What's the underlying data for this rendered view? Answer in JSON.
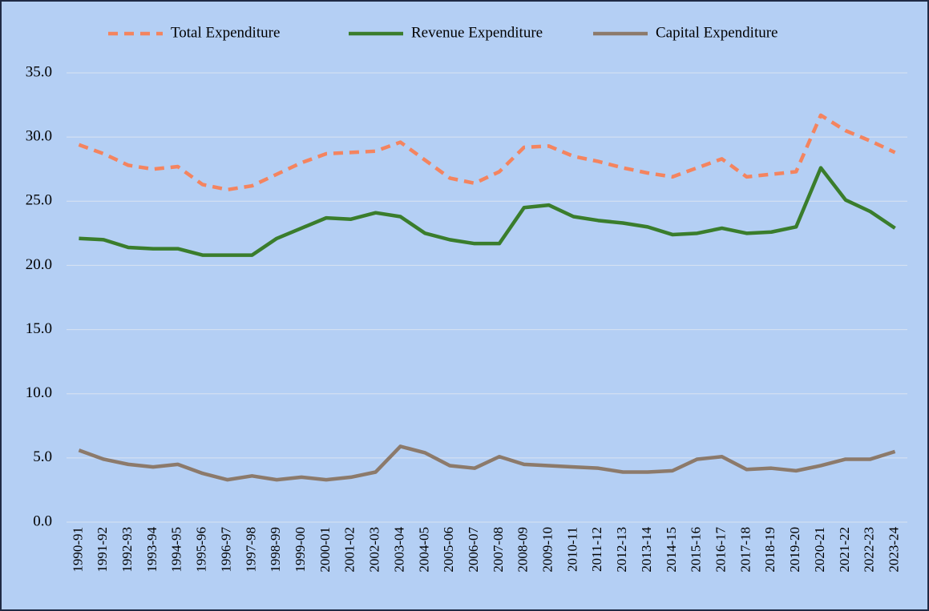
{
  "chart_data": {
    "type": "line",
    "categories": [
      "1990-91",
      "1991-92",
      "1992-93",
      "1993-94",
      "1994-95",
      "1995-96",
      "1996-97",
      "1997-98",
      "1998-99",
      "1999-00",
      "2000-01",
      "2001-02",
      "2002-03",
      "2003-04",
      "2004-05",
      "2005-06",
      "2006-07",
      "2007-08",
      "2008-09",
      "2009-10",
      "2010-11",
      "2011-12",
      "2012-13",
      "2013-14",
      "2014-15",
      "2015-16",
      "2016-17",
      "2017-18",
      "2018-19",
      "2019-20",
      "2020-21",
      "2021-22",
      "2022-23",
      "2023-24"
    ],
    "series": [
      {
        "name": "Total Expenditure",
        "color": "#f4845f",
        "dashed": true,
        "values": [
          29.4,
          28.7,
          27.8,
          27.5,
          27.7,
          26.3,
          25.9,
          26.2,
          27.1,
          28.0,
          28.7,
          28.8,
          28.9,
          29.6,
          28.2,
          26.8,
          26.4,
          27.3,
          29.2,
          29.3,
          28.5,
          28.1,
          27.6,
          27.2,
          26.9,
          27.6,
          28.3,
          26.9,
          27.1,
          27.3,
          31.7,
          30.5,
          29.7,
          28.8
        ]
      },
      {
        "name": "Revenue Expenditure",
        "color": "#3a7d2c",
        "values": [
          22.1,
          22.0,
          21.4,
          21.3,
          21.3,
          20.8,
          20.8,
          20.8,
          22.1,
          22.9,
          23.7,
          23.6,
          24.1,
          23.8,
          22.5,
          22.0,
          21.7,
          21.7,
          24.5,
          24.7,
          23.8,
          23.5,
          23.3,
          23.0,
          22.4,
          22.5,
          22.9,
          22.5,
          22.6,
          23.0,
          27.6,
          25.1,
          24.2,
          22.9
        ]
      },
      {
        "name": "Capital Expenditure",
        "color": "#8c7a6b",
        "values": [
          5.6,
          4.9,
          4.5,
          4.3,
          4.5,
          3.8,
          3.3,
          3.6,
          3.3,
          3.5,
          3.3,
          3.5,
          3.9,
          5.9,
          5.4,
          4.4,
          4.2,
          5.1,
          4.5,
          4.4,
          4.3,
          4.2,
          3.9,
          3.9,
          4.0,
          4.9,
          5.1,
          4.1,
          4.2,
          4.0,
          4.4,
          4.9,
          4.9,
          5.5
        ]
      }
    ],
    "ylim": [
      0,
      35
    ],
    "yticks": [
      {
        "value": 0,
        "label": "0.0"
      },
      {
        "value": 5,
        "label": "5.0"
      },
      {
        "value": 10,
        "label": "10.0"
      },
      {
        "value": 15,
        "label": "15.0"
      },
      {
        "value": 20,
        "label": "20.0"
      },
      {
        "value": 25,
        "label": "25.0"
      },
      {
        "value": 30,
        "label": "30.0"
      },
      {
        "value": 35,
        "label": "35.0"
      }
    ],
    "grid": true,
    "legend": "top",
    "background": "#b4cff4"
  }
}
